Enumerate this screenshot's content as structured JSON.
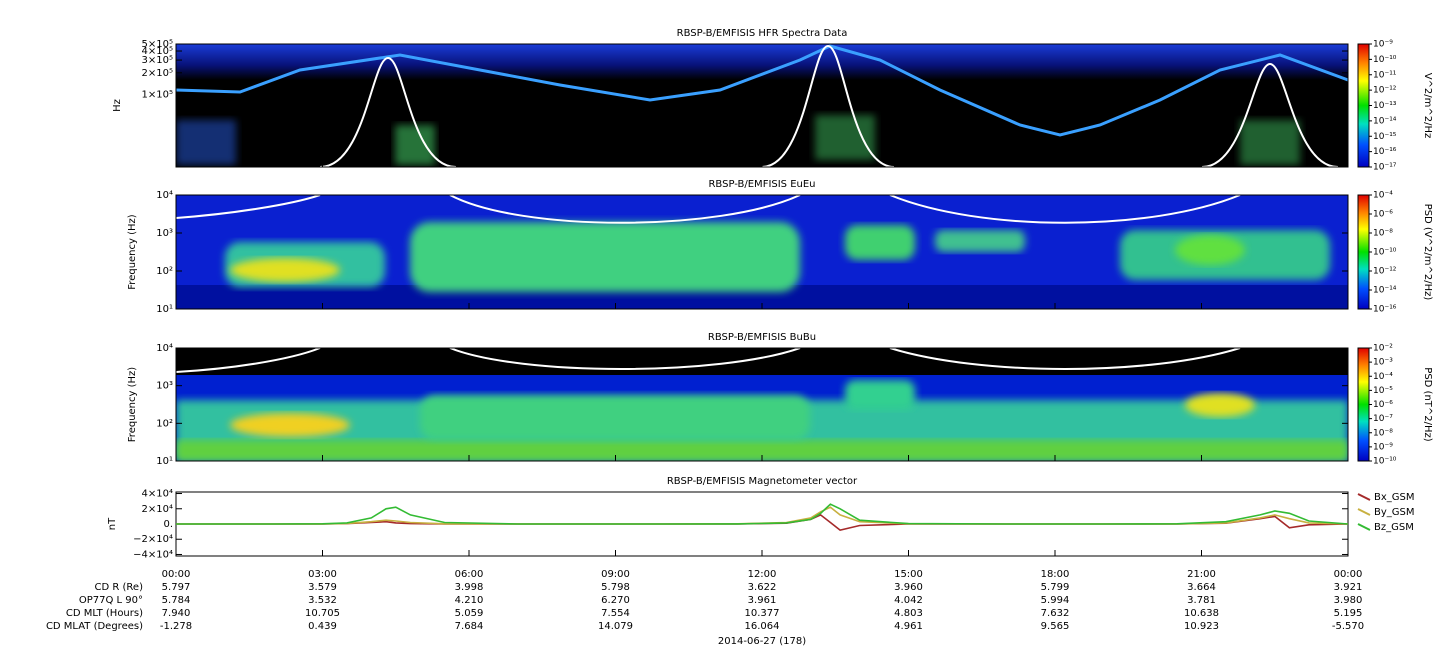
{
  "chart_data": [
    {
      "type": "heatmap",
      "title": "RBSP-B/EMFISIS  HFR Spectra Data",
      "y_label": "Hz",
      "log_y": true,
      "xlim": [
        0,
        24
      ],
      "ylim": [
        10000,
        500000
      ],
      "yticks": [
        {
          "value": 100000,
          "label": "1×10⁵"
        },
        {
          "value": 200000,
          "label": "2×10⁵"
        },
        {
          "value": 300000,
          "label": "3×10⁵"
        },
        {
          "value": 400000,
          "label": "4×10⁵"
        },
        {
          "value": 500000,
          "label": "5×10⁵"
        }
      ],
      "colorbar": {
        "label": "V^2/m^2/Hz",
        "lim": [
          1e-17,
          1e-09
        ],
        "ticks": [
          {
            "value": 1e-09,
            "label": "10⁻⁹"
          },
          {
            "value": 1e-10,
            "label": "10⁻¹⁰"
          },
          {
            "value": 1e-11,
            "label": "10⁻¹¹"
          },
          {
            "value": 1e-12,
            "label": "10⁻¹²"
          },
          {
            "value": 1e-13,
            "label": "10⁻¹³"
          },
          {
            "value": 1e-14,
            "label": "10⁻¹⁴"
          },
          {
            "value": 1e-15,
            "label": "10⁻¹⁵"
          },
          {
            "value": 1e-16,
            "label": "10⁻¹⁶"
          },
          {
            "value": 1e-17,
            "label": "10⁻¹⁷"
          }
        ]
      }
    },
    {
      "type": "heatmap",
      "title": "RBSP-B/EMFISIS  EuEu",
      "y_label": "Frequency (Hz)",
      "log_y": true,
      "xlim": [
        0,
        24
      ],
      "ylim": [
        10,
        10000
      ],
      "yticks": [
        {
          "value": 10,
          "label": "10¹"
        },
        {
          "value": 100,
          "label": "10²"
        },
        {
          "value": 1000,
          "label": "10³"
        },
        {
          "value": 10000,
          "label": "10⁴"
        }
      ],
      "colorbar": {
        "label": "PSD (V^2/m^2/Hz)",
        "lim": [
          1e-16,
          0.0001
        ],
        "ticks": [
          {
            "value": 0.0001,
            "label": "10⁻⁴"
          },
          {
            "value": 1e-06,
            "label": "10⁻⁶"
          },
          {
            "value": 1e-08,
            "label": "10⁻⁸"
          },
          {
            "value": 1e-10,
            "label": "10⁻¹⁰"
          },
          {
            "value": 1e-12,
            "label": "10⁻¹²"
          },
          {
            "value": 1e-14,
            "label": "10⁻¹⁴"
          },
          {
            "value": 1e-16,
            "label": "10⁻¹⁶"
          }
        ]
      }
    },
    {
      "type": "heatmap",
      "title": "RBSP-B/EMFISIS  BuBu",
      "y_label": "Frequency (Hz)",
      "log_y": true,
      "xlim": [
        0,
        24
      ],
      "ylim": [
        10,
        10000
      ],
      "yticks": [
        {
          "value": 10,
          "label": "10¹"
        },
        {
          "value": 100,
          "label": "10²"
        },
        {
          "value": 1000,
          "label": "10³"
        },
        {
          "value": 10000,
          "label": "10⁴"
        }
      ],
      "colorbar": {
        "label": "PSD (nT^2/Hz)",
        "lim": [
          1e-10,
          0.01
        ],
        "ticks": [
          {
            "value": 0.01,
            "label": "10⁻²"
          },
          {
            "value": 0.001,
            "label": "10⁻³"
          },
          {
            "value": 0.0001,
            "label": "10⁻⁴"
          },
          {
            "value": 1e-05,
            "label": "10⁻⁵"
          },
          {
            "value": 1e-06,
            "label": "10⁻⁶"
          },
          {
            "value": 1e-07,
            "label": "10⁻⁷"
          },
          {
            "value": 1e-08,
            "label": "10⁻⁸"
          },
          {
            "value": 1e-09,
            "label": "10⁻⁹"
          },
          {
            "value": 1e-10,
            "label": "10⁻¹⁰"
          }
        ]
      }
    },
    {
      "type": "line",
      "title": "RBSP-B/EMFISIS  Magnetometer vector",
      "y_label": "nT",
      "legend": "right",
      "xlim": [
        0,
        24
      ],
      "xticks": [
        {
          "value": 0,
          "label": "00:00"
        },
        {
          "value": 3,
          "label": "03:00"
        },
        {
          "value": 6,
          "label": "06:00"
        },
        {
          "value": 9,
          "label": "09:00"
        },
        {
          "value": 12,
          "label": "12:00"
        },
        {
          "value": 15,
          "label": "15:00"
        },
        {
          "value": 18,
          "label": "18:00"
        },
        {
          "value": 21,
          "label": "21:00"
        },
        {
          "value": 24,
          "label": "00:00"
        }
      ],
      "ylim": [
        -42000,
        42000
      ],
      "yticks": [
        {
          "value": -40000,
          "label": "−4×10⁴"
        },
        {
          "value": -20000,
          "label": "−2×10⁴"
        },
        {
          "value": 0,
          "label": "0."
        },
        {
          "value": 20000,
          "label": "2×10⁴"
        },
        {
          "value": 40000,
          "label": "4×10⁴"
        }
      ],
      "x": [
        0,
        2,
        3,
        3.5,
        4,
        4.3,
        4.5,
        4.8,
        5.5,
        7,
        10,
        11.5,
        12.5,
        13,
        13.2,
        13.4,
        13.6,
        14,
        15,
        17,
        19,
        20.5,
        21.5,
        22.2,
        22.5,
        22.8,
        23.2,
        24
      ],
      "series": [
        {
          "name": "Bx_GSM",
          "color": "#a52a2a",
          "values": [
            0,
            0,
            0,
            500,
            2000,
            3000,
            1500,
            500,
            0,
            0,
            0,
            100,
            1000,
            6000,
            12000,
            2000,
            -8000,
            -2000,
            0,
            0,
            0,
            0,
            1000,
            7000,
            10000,
            -5000,
            -1000,
            0
          ]
        },
        {
          "name": "By_GSM",
          "color": "#c8b040",
          "values": [
            0,
            0,
            100,
            800,
            3000,
            5000,
            4000,
            2000,
            300,
            0,
            0,
            200,
            2000,
            8000,
            16000,
            22000,
            12000,
            3000,
            300,
            0,
            0,
            100,
            1500,
            8000,
            12000,
            7000,
            1500,
            0
          ]
        },
        {
          "name": "Bz_GSM",
          "color": "#33bb33",
          "values": [
            0,
            0,
            200,
            1500,
            8000,
            20000,
            22000,
            12000,
            2000,
            0,
            0,
            100,
            1500,
            6000,
            14000,
            26000,
            20000,
            5000,
            500,
            0,
            0,
            200,
            3000,
            12000,
            17000,
            14000,
            4000,
            0
          ]
        }
      ]
    }
  ],
  "ephemeris": {
    "labels": [
      "CD R (Re)",
      "OP77Q L 90°",
      "CD MLT (Hours)",
      "CD MLAT (Degrees)"
    ],
    "rows": [
      [
        "5.797",
        "3.579",
        "3.998",
        "5.798",
        "3.622",
        "3.960",
        "5.799",
        "3.664",
        "3.921"
      ],
      [
        "5.784",
        "3.532",
        "4.210",
        "6.270",
        "3.961",
        "4.042",
        "5.994",
        "3.781",
        "3.980"
      ],
      [
        "7.940",
        "10.705",
        "5.059",
        "7.554",
        "10.377",
        "4.803",
        "7.632",
        "10.638",
        "5.195"
      ],
      [
        "-1.278",
        "0.439",
        "7.684",
        "14.079",
        "16.064",
        "4.961",
        "9.565",
        "10.923",
        "-5.570"
      ]
    ],
    "date": "2014-06-27 (178)"
  }
}
